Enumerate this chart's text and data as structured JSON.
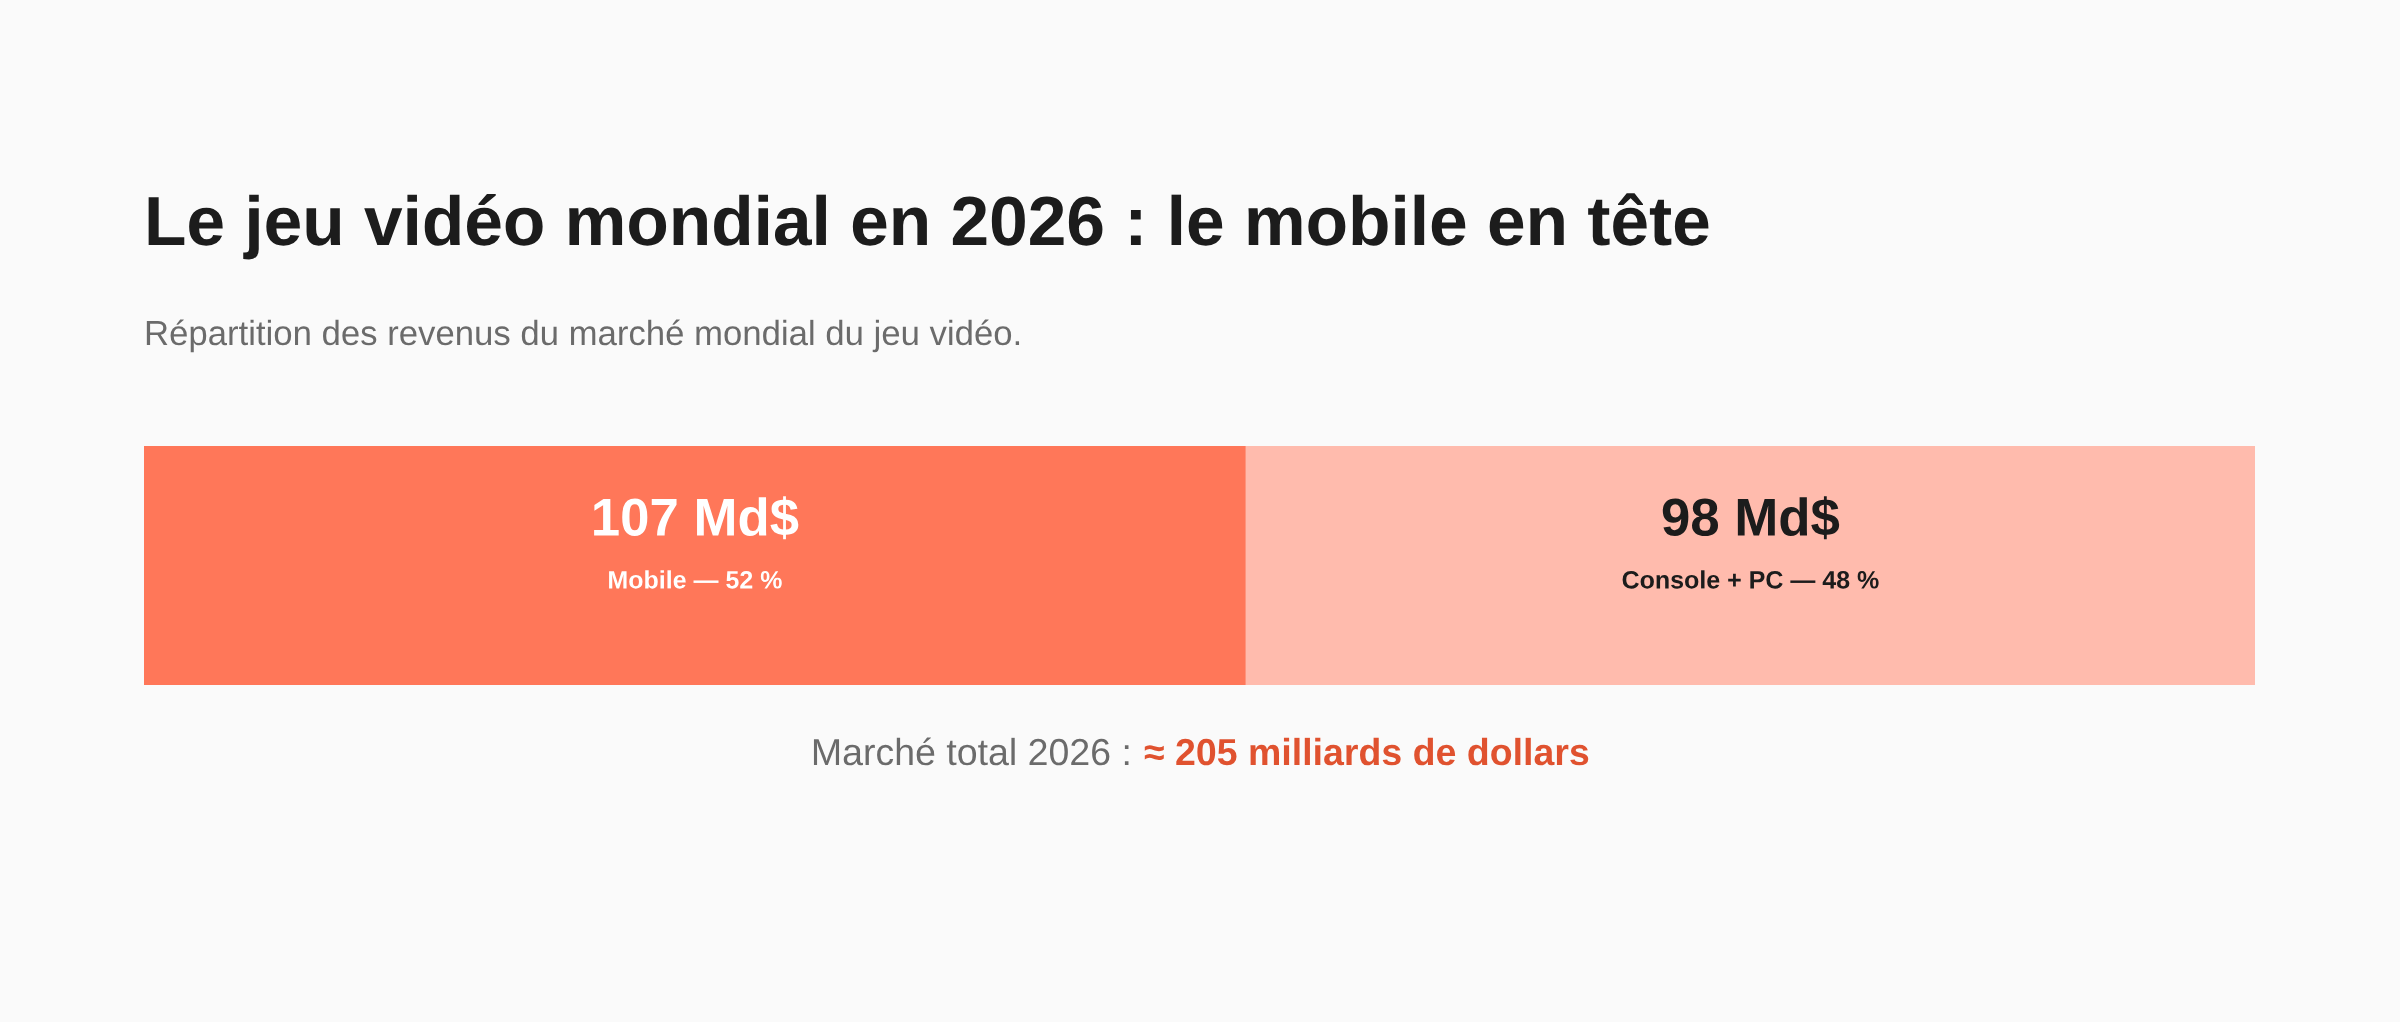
{
  "chart_data": {
    "type": "bar",
    "orientation": "horizontal",
    "stacked": true,
    "title": "Le jeu vidéo mondial en 2026 : le mobile en tête",
    "subtitle": "Répartition des revenus du marché mondial du jeu vidéo.",
    "categories": [
      null
    ],
    "series": [
      {
        "name": "Mobile — 52 %",
        "color": "#ff7759",
        "values": [
          107
        ],
        "value_labels": [
          "107 Md$"
        ]
      },
      {
        "name": "Console + PC — 48 %",
        "color": "#ffbbad",
        "values": [
          98
        ],
        "value_labels": [
          "98 Md$"
        ]
      }
    ],
    "annotations": [
      "Marché total 2026 :",
      "≈ 205 milliards de dollars"
    ],
    "tick_labels": false,
    "grid": false,
    "legend": false
  }
}
